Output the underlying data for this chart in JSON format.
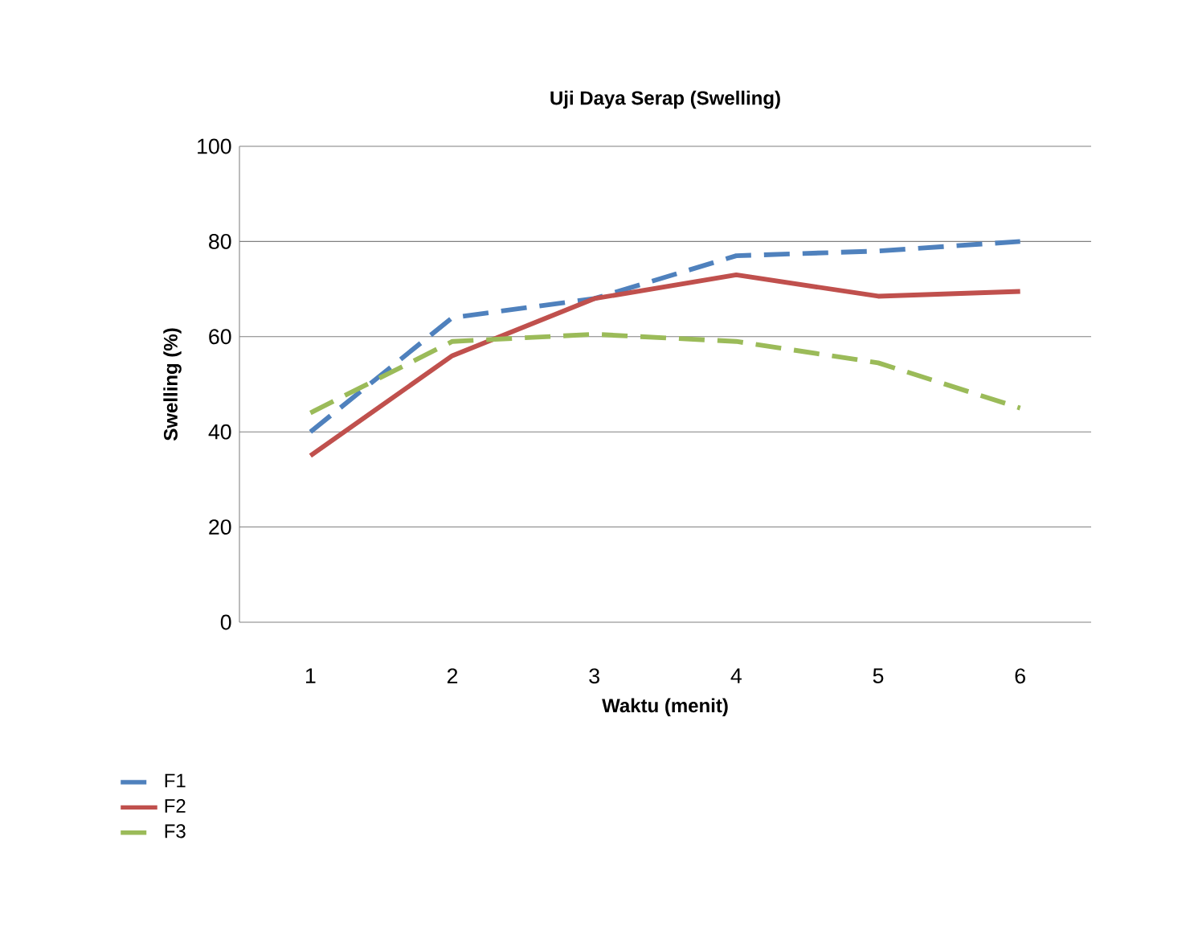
{
  "chart_data": {
    "type": "line",
    "title": "Uji Daya Serap (Swelling)",
    "xlabel": "Waktu (menit)",
    "ylabel": "Swelling (%)",
    "categories": [
      "1",
      "2",
      "3",
      "4",
      "5",
      "6"
    ],
    "series": [
      {
        "name": "F1",
        "color": "#4f81bd",
        "line_style": "dashed",
        "values": [
          40,
          64,
          68,
          77,
          78,
          80
        ]
      },
      {
        "name": "F2",
        "color": "#c0504d",
        "line_style": "solid",
        "values": [
          35,
          56,
          68,
          73,
          68.5,
          69.5
        ]
      },
      {
        "name": "F3",
        "color": "#9bbb59",
        "line_style": "dashed",
        "values": [
          44,
          59,
          60.5,
          59,
          54.5,
          45
        ]
      }
    ],
    "ylim": [
      0,
      100
    ],
    "yticks": [
      0,
      20,
      40,
      60,
      80,
      100
    ],
    "grid": "y",
    "legend": "bottom left",
    "marker": "none"
  }
}
